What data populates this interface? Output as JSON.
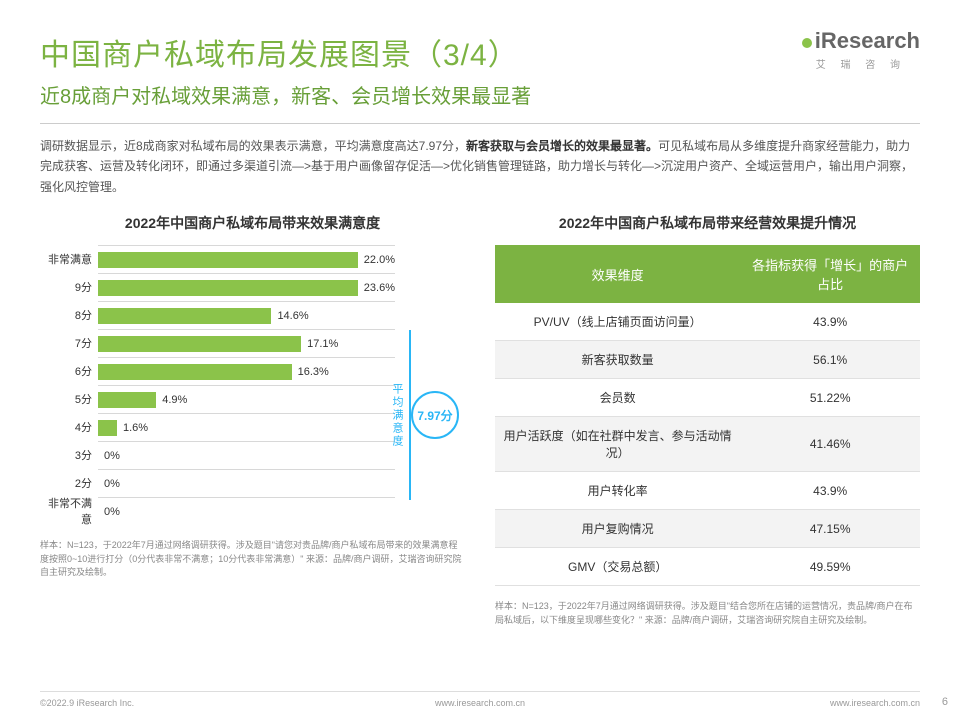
{
  "header": {
    "title_main": "中国商户私域布局发展图景",
    "title_suffix": "（3/4）",
    "title_color": "#7cb342",
    "subtitle": "近8成商户对私域效果满意，新客、会员增长效果最显著",
    "subtitle_color": "#689f38"
  },
  "logo": {
    "text": "Research",
    "prefix": "i",
    "sub": "艾 瑞 咨 询"
  },
  "body": {
    "pre": "调研数据显示，近8成商家对私域布局的效果表示满意，平均满意度高达7.97分，",
    "bold": "新客获取与会员增长的效果最显著。",
    "post": "可见私域布局从多维度提升商家经营能力，助力完成获客、运营及转化闭环，即通过多渠道引流—>基于用户画像留存促活—>优化销售管理链路，助力增长与转化—>沉淀用户资产、全域运营用户，输出用户洞察，强化风控管理。"
  },
  "chart": {
    "title": "2022年中国商户私域布局带来效果满意度",
    "categories": [
      "非常满意",
      "9分",
      "8分",
      "7分",
      "6分",
      "5分",
      "4分",
      "3分",
      "2分",
      "非常不满意"
    ],
    "values": [
      22.0,
      23.6,
      14.6,
      17.1,
      16.3,
      4.9,
      1.6,
      0,
      0,
      0
    ],
    "value_labels": [
      "22.0%",
      "23.6%",
      "14.6%",
      "17.1%",
      "16.3%",
      "4.9%",
      "1.6%",
      "0%",
      "0%",
      "0%"
    ],
    "bar_color": "#8bc34a",
    "max_pct": 25,
    "avg_label": "平均满意度",
    "avg_value": "7.97分",
    "avg_color": "#29b6f6",
    "footnote": "样本：N=123，于2022年7月通过网络调研获得。涉及题目\"请您对贵品牌/商户私域布局带来的效果满意程度按照0~10进行打分（0分代表非常不满意；10分代表非常满意）\"\n来源：品牌/商户调研，艾瑞咨询研究院自主研究及绘制。"
  },
  "table": {
    "title": "2022年中国商户私域布局带来经营效果提升情况",
    "header_bg": "#7cb342",
    "columns": [
      "效果维度",
      "各指标获得「增长」的商户占比"
    ],
    "rows": [
      [
        "PV/UV（线上店铺页面访问量）",
        "43.9%"
      ],
      [
        "新客获取数量",
        "56.1%"
      ],
      [
        "会员数",
        "51.22%"
      ],
      [
        "用户活跃度（如在社群中发言、参与活动情况）",
        "41.46%"
      ],
      [
        "用户转化率",
        "43.9%"
      ],
      [
        "用户复购情况",
        "47.15%"
      ],
      [
        "GMV（交易总额）",
        "49.59%"
      ]
    ],
    "footnote": "样本：N=123，于2022年7月通过网络调研获得。涉及题目\"结合您所在店铺的运营情况，贵品牌/商户在布局私域后，以下维度呈现哪些变化？\"\n来源：品牌/商户调研，艾瑞咨询研究院自主研究及绘制。"
  },
  "footer": {
    "left": "©2022.9 iResearch Inc.",
    "center": "www.iresearch.com.cn",
    "right": "©2022.9 iResearch Inc.",
    "right2": "www.iresearch.com.cn",
    "page": "6"
  }
}
